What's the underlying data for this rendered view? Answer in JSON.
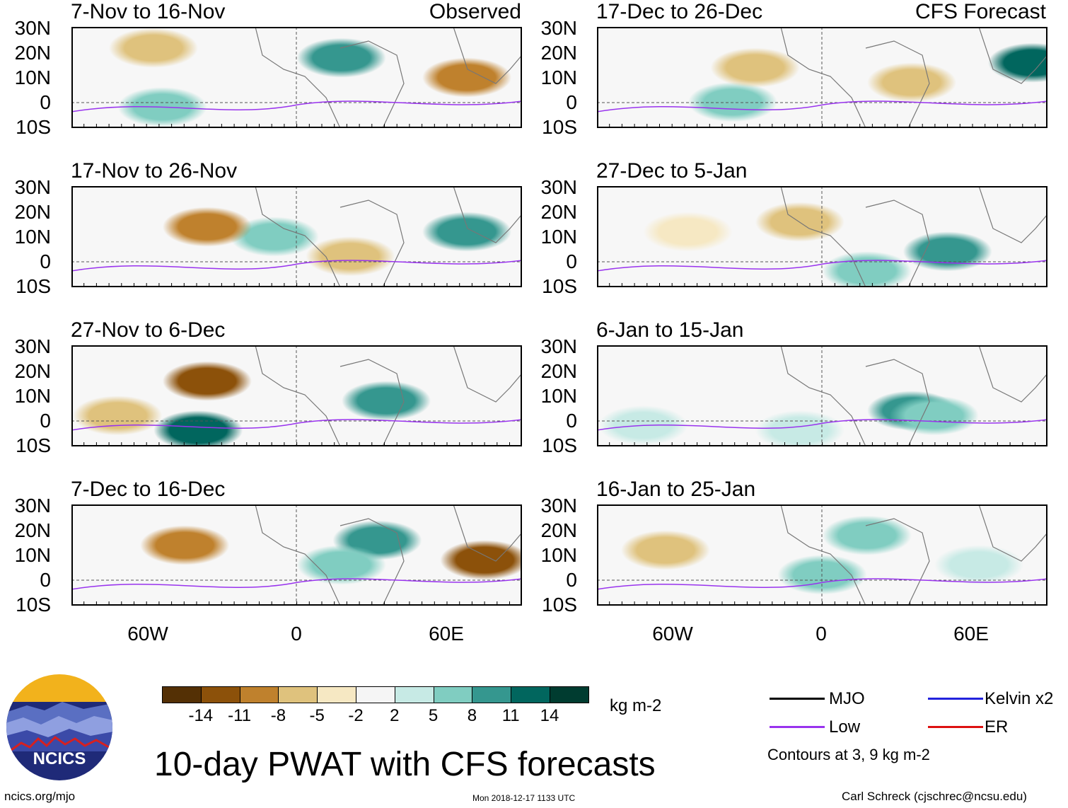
{
  "panels": {
    "obs1": {
      "period": "7-Nov to 16-Nov",
      "label": "Observed"
    },
    "obs2": {
      "period": "17-Nov to 26-Nov"
    },
    "obs3": {
      "period": "27-Nov to 6-Dec"
    },
    "obs4": {
      "period": "7-Dec to 16-Dec"
    },
    "fc1": {
      "period": "17-Dec to 26-Dec",
      "label": "CFS Forecast"
    },
    "fc2": {
      "period": "27-Dec to 5-Jan"
    },
    "fc3": {
      "period": "6-Jan to 15-Jan"
    },
    "fc4": {
      "period": "16-Jan to 25-Jan"
    }
  },
  "axes": {
    "lat_labels": [
      "30N",
      "20N",
      "10N",
      "0",
      "10S"
    ],
    "lon_labels": [
      "60W",
      "0",
      "60E"
    ]
  },
  "colorbar": {
    "ticks": [
      "-14",
      "-11",
      "-8",
      "-5",
      "-2",
      "2",
      "5",
      "8",
      "11",
      "14"
    ],
    "colors": [
      "#543005",
      "#8c510a",
      "#bf812d",
      "#dfc27d",
      "#f6e8c3",
      "#f5f5f5",
      "#c7eae5",
      "#80cdc1",
      "#35978f",
      "#01665e",
      "#003c30"
    ],
    "units": "kg m-2"
  },
  "title": "10-day PWAT with CFS forecasts",
  "legend": {
    "items": [
      {
        "label": "MJO",
        "color": "#000000"
      },
      {
        "label": "Kelvin x2",
        "color": "#2222dd"
      },
      {
        "label": "Low",
        "color": "#9933ee"
      },
      {
        "label": "ER",
        "color": "#dd1111"
      }
    ],
    "note": "Contours at 3, 9 kg m-2"
  },
  "footer": {
    "left": "ncics.org/mjo",
    "center": "Mon 2018-12-17 1133 UTC",
    "right": "Carl Schreck (cjschrec@ncsu.edu)"
  },
  "logo": {
    "text": "NCICS"
  }
}
